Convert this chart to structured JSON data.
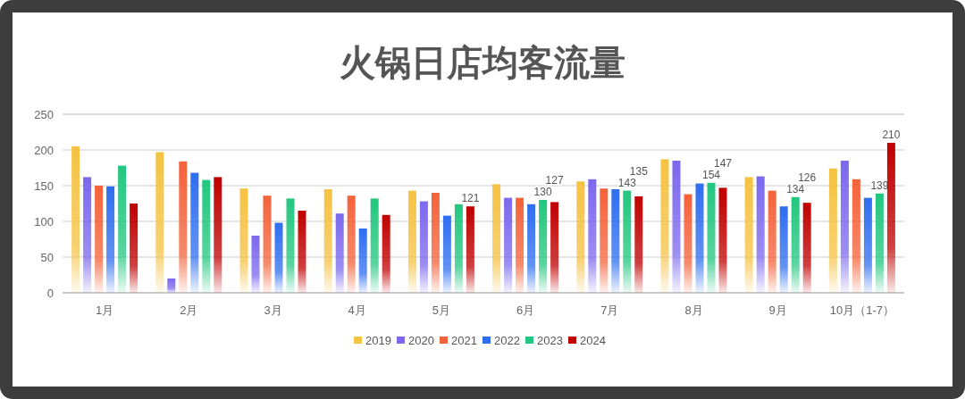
{
  "chart_data": {
    "type": "bar",
    "title": "火锅日店均客流量",
    "categories": [
      "1月",
      "2月",
      "3月",
      "4月",
      "5月",
      "6月",
      "7月",
      "8月",
      "9月",
      "10月（1-7）"
    ],
    "ylim": [
      0,
      250
    ],
    "yticks": [
      0,
      50,
      100,
      150,
      200,
      250
    ],
    "grid": "y",
    "legend": "bottom",
    "series": [
      {
        "name": "2019",
        "color": "#f5c242",
        "values": [
          205,
          197,
          146,
          145,
          143,
          152,
          156,
          187,
          162,
          174
        ]
      },
      {
        "name": "2020",
        "color": "#7b68ee",
        "values": [
          162,
          20,
          80,
          111,
          128,
          133,
          159,
          185,
          163,
          185
        ]
      },
      {
        "name": "2021",
        "color": "#f4623a",
        "values": [
          150,
          184,
          136,
          136,
          140,
          133,
          146,
          138,
          143,
          159
        ]
      },
      {
        "name": "2022",
        "color": "#2f6ef0",
        "values": [
          149,
          168,
          98,
          90,
          108,
          124,
          145,
          153,
          121,
          133
        ]
      },
      {
        "name": "2023",
        "color": "#22c77f",
        "values": [
          178,
          158,
          132,
          132,
          124,
          130,
          143,
          154,
          134,
          139
        ],
        "value_labels": [
          null,
          null,
          null,
          null,
          null,
          "130",
          "143",
          "154",
          "134",
          "139"
        ]
      },
      {
        "name": "2024",
        "color": "#c00000",
        "values": [
          125,
          162,
          115,
          109,
          121,
          127,
          135,
          147,
          126,
          210
        ],
        "value_labels": [
          null,
          null,
          null,
          null,
          "121",
          "127",
          "135",
          "147",
          "126",
          "210"
        ]
      }
    ]
  }
}
